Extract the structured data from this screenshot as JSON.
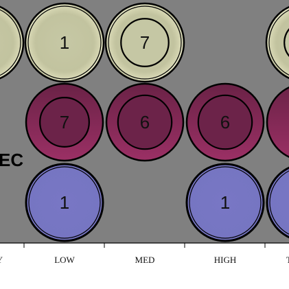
{
  "chart_data": {
    "type": "bubble-matrix",
    "title": "",
    "xlabel": "",
    "ylabel": "",
    "grid": false,
    "plot_background": "#808080",
    "columns": [
      "VERY LOW",
      "LOW",
      "MED",
      "HIGH",
      "VERY HIGH"
    ],
    "visible_tick_labels": [
      "Y",
      "LOW",
      "MED",
      "HIGH",
      "T"
    ],
    "rows": [
      {
        "name": "",
        "color": "#c2c39f",
        "cells": [
          {
            "column": "VERY LOW",
            "outer": 1.0,
            "inner": null,
            "label": ""
          },
          {
            "column": "LOW",
            "outer": 1.0,
            "inner": null,
            "label": "1"
          },
          {
            "column": "MED",
            "outer": 1.0,
            "inner": 0.62,
            "label": "7"
          },
          {
            "column": "HIGH",
            "outer": null,
            "inner": null,
            "label": ""
          },
          {
            "column": "VERY HIGH",
            "outer": 1.0,
            "inner": 0.55,
            "label": ""
          }
        ]
      },
      {
        "name": "EC",
        "color": "#7a2450",
        "cells": [
          {
            "column": "VERY LOW",
            "outer": null,
            "inner": null,
            "label": ""
          },
          {
            "column": "LOW",
            "outer": 1.0,
            "inner": 0.64,
            "label": "7"
          },
          {
            "column": "MED",
            "outer": 1.0,
            "inner": 0.7,
            "label": "6"
          },
          {
            "column": "HIGH",
            "outer": 1.0,
            "inner": 0.7,
            "label": "6"
          },
          {
            "column": "VERY HIGH",
            "outer": 1.0,
            "inner": null,
            "label": ""
          }
        ]
      },
      {
        "name": "",
        "color": "#7877c4",
        "cells": [
          {
            "column": "VERY LOW",
            "outer": null,
            "inner": null,
            "label": ""
          },
          {
            "column": "LOW",
            "outer": 1.0,
            "inner": null,
            "label": "1"
          },
          {
            "column": "MED",
            "outer": null,
            "inner": null,
            "label": ""
          },
          {
            "column": "HIGH",
            "outer": 1.0,
            "inner": null,
            "label": "1"
          },
          {
            "column": "VERY HIGH",
            "outer": 1.0,
            "inner": null,
            "label": ""
          }
        ]
      }
    ]
  }
}
